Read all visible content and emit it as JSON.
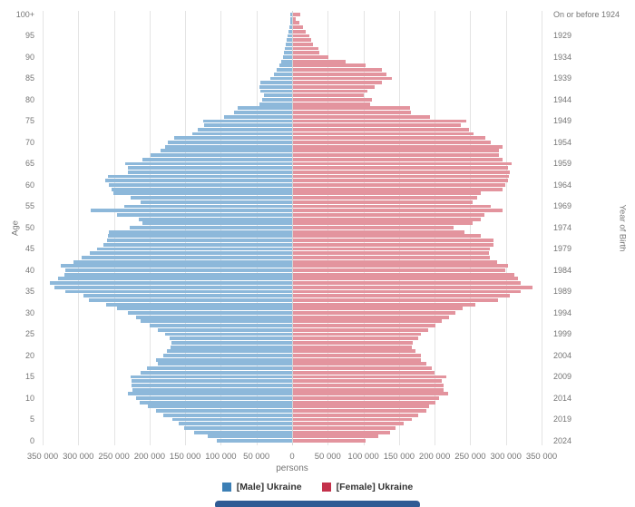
{
  "chart_data": {
    "type": "bar",
    "subtype": "population-pyramid",
    "title": "",
    "x_axis": {
      "label": "persons",
      "tick_labels": [
        "350 000",
        "300 000",
        "250 000",
        "200 000",
        "150 000",
        "100 000",
        "50 000",
        "0",
        "50 000",
        "100 000",
        "150 000",
        "200 000",
        "250 000",
        "300 000",
        "350 000"
      ],
      "max_per_side": 350000,
      "grid": true
    },
    "left_axis": {
      "label": "Age",
      "tick_ages": [
        0,
        5,
        10,
        15,
        20,
        25,
        30,
        35,
        40,
        45,
        50,
        55,
        60,
        65,
        70,
        75,
        80,
        85,
        90,
        95,
        100
      ],
      "tick_labels": [
        "0",
        "5",
        "10",
        "15",
        "20",
        "25",
        "30",
        "35",
        "40",
        "45",
        "50",
        "55",
        "60",
        "65",
        "70",
        "75",
        "80",
        "85",
        "90",
        "95",
        "100+"
      ]
    },
    "right_axis": {
      "label": "Year of Birth",
      "tick_labels_top_to_bottom": [
        "On or before 1924",
        "1929",
        "1934",
        "1939",
        "1944",
        "1949",
        "1954",
        "1959",
        "1964",
        "1969",
        "1974",
        "1979",
        "1984",
        "1989",
        "1994",
        "1999",
        "2004",
        "2009",
        "2014",
        "2019",
        "2024"
      ]
    },
    "ages": "0 to 100 (100 = 100+), one bar per year of age",
    "series": [
      {
        "name": "[Male] Ukraine",
        "side": "left",
        "bar_color": "#8db8da",
        "legend_color": "#3c7fb5",
        "values_by_age_0_to_100": [
          106000,
          119000,
          138000,
          151000,
          159000,
          168000,
          181000,
          191000,
          202000,
          214000,
          219000,
          231000,
          224000,
          225000,
          225000,
          227000,
          212000,
          204000,
          189000,
          191000,
          181000,
          176000,
          170000,
          169000,
          172000,
          178000,
          189000,
          200000,
          212000,
          219000,
          231000,
          246000,
          261000,
          285000,
          293000,
          318000,
          333000,
          340000,
          329000,
          320000,
          318000,
          325000,
          307000,
          295000,
          284000,
          274000,
          265000,
          260000,
          259000,
          257000,
          228000,
          210000,
          215000,
          246000,
          283000,
          236000,
          212000,
          226000,
          251000,
          253000,
          257000,
          262000,
          258000,
          231000,
          231000,
          234000,
          210000,
          198000,
          185000,
          178000,
          175000,
          166000,
          140000,
          133000,
          123000,
          125000,
          95000,
          81000,
          76000,
          46000,
          42000,
          40000,
          44000,
          46000,
          44000,
          30000,
          26000,
          22000,
          18000,
          15000,
          13000,
          12000,
          10000,
          9000,
          8000,
          7000,
          5000,
          4000,
          3000,
          2000,
          2000
        ]
      },
      {
        "name": "[Female] Ukraine",
        "side": "right",
        "bar_color": "#e3949e",
        "legend_color": "#c4314b",
        "values_by_age_0_to_100": [
          103000,
          120000,
          137000,
          144000,
          156000,
          167000,
          176000,
          188000,
          192000,
          201000,
          205000,
          218000,
          212000,
          212000,
          209000,
          216000,
          199000,
          195000,
          188000,
          180000,
          180000,
          173000,
          167000,
          169000,
          176000,
          180000,
          190000,
          201000,
          209000,
          220000,
          228000,
          239000,
          256000,
          288000,
          305000,
          320000,
          337000,
          320000,
          316000,
          311000,
          299000,
          302000,
          287000,
          277000,
          275000,
          277000,
          282000,
          282000,
          264000,
          241000,
          226000,
          253000,
          264000,
          269000,
          294000,
          278000,
          252000,
          259000,
          264000,
          294000,
          299000,
          302000,
          304000,
          305000,
          302000,
          307000,
          294000,
          290000,
          290000,
          295000,
          278000,
          271000,
          254000,
          248000,
          236000,
          244000,
          193000,
          166000,
          165000,
          109000,
          111000,
          100000,
          105000,
          115000,
          125000,
          139000,
          132000,
          125000,
          103000,
          75000,
          50000,
          38000,
          36000,
          29000,
          26000,
          23000,
          18000,
          14000,
          9000,
          5000,
          11000
        ]
      }
    ],
    "legend_position": "bottom-center",
    "colors": {
      "gridline": "#e4e4e4",
      "center_line": "#d6d6d6",
      "tick_text": "#757575",
      "legend_text": "#333333",
      "background": "#ffffff",
      "slider_bar": "#2f5b94"
    }
  },
  "legend": {
    "items": [
      {
        "label": "[Male] Ukraine",
        "color": "#3c7fb5"
      },
      {
        "label": "[Female] Ukraine",
        "color": "#c4314b"
      }
    ]
  },
  "labels": {
    "age_axis_title": "Age",
    "year_axis_title": "Year of Birth",
    "x_axis_title": "persons"
  }
}
